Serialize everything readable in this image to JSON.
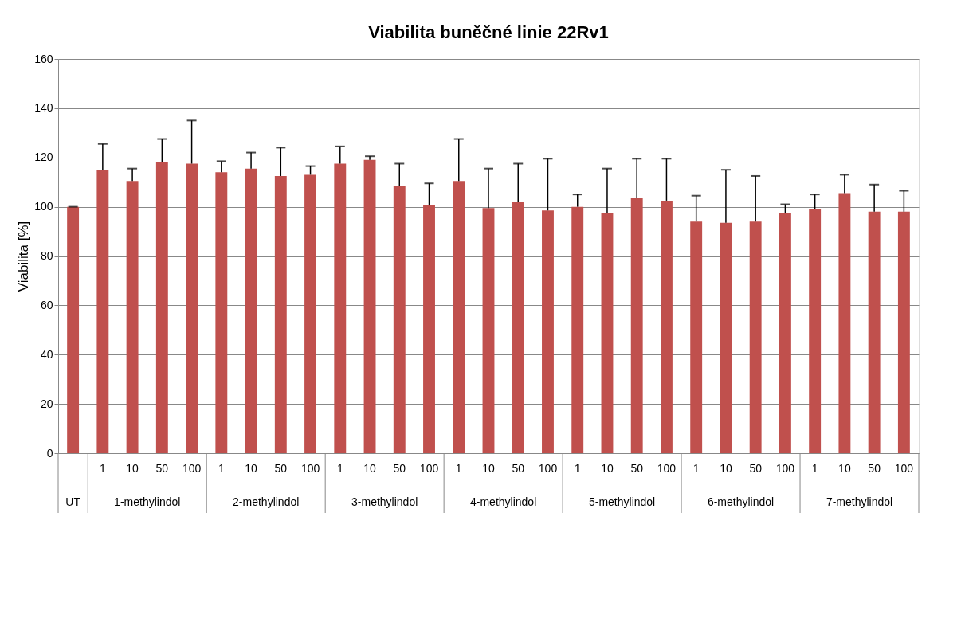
{
  "chart_data": {
    "type": "bar",
    "title": "Viabilita buněčné linie 22Rv1",
    "ylabel": "Viabilita [%]",
    "categories": [
      null,
      "1",
      "10",
      "50",
      "100",
      "1",
      "10",
      "50",
      "100",
      "1",
      "10",
      "50",
      "100",
      "1",
      "10",
      "50",
      "100",
      "1",
      "10",
      "50",
      "100",
      "1",
      "10",
      "50",
      "100",
      "1",
      "10",
      "50",
      "100"
    ],
    "values": [
      100,
      115,
      110.5,
      118,
      117.5,
      114,
      115.5,
      112.5,
      113,
      117.5,
      119,
      108.5,
      100.5,
      110.5,
      99.5,
      102,
      98.5,
      100,
      97.5,
      103.5,
      102.5,
      94,
      93.5,
      94,
      97.5,
      99,
      105.5,
      98,
      98
    ],
    "errors": [
      [
        100,
        100
      ],
      [
        115,
        125.5
      ],
      [
        110.5,
        115.5
      ],
      [
        118,
        127.5
      ],
      [
        117.5,
        135
      ],
      [
        114,
        118.5
      ],
      [
        115.5,
        122
      ],
      [
        112.5,
        124
      ],
      [
        113,
        116.5
      ],
      [
        117.5,
        124.5
      ],
      [
        119,
        120.5
      ],
      [
        108.5,
        117.5
      ],
      [
        100.5,
        109.5
      ],
      [
        110.5,
        127.5
      ],
      [
        99.5,
        115.5
      ],
      [
        102,
        117.5
      ],
      [
        98.5,
        119.5
      ],
      [
        100,
        105
      ],
      [
        97.5,
        115.5
      ],
      [
        103.5,
        119.5
      ],
      [
        102.5,
        119.5
      ],
      [
        94,
        104.5
      ],
      [
        93.5,
        115
      ],
      [
        94,
        112.5
      ],
      [
        97.5,
        101
      ],
      [
        99,
        105
      ],
      [
        105.5,
        113
      ],
      [
        98,
        109
      ],
      [
        98,
        106.5
      ]
    ],
    "color": "#c0504d",
    "ylim": [
      0,
      160
    ],
    "yticks": [
      0,
      20,
      40,
      60,
      80,
      100,
      120,
      140,
      160
    ],
    "grid": "y",
    "annotations": [
      "UT",
      "1-methylindol",
      "2-methylindol",
      "3-methylindol",
      "4-methylindol",
      "5-methylindol",
      "6-methylindol",
      "7-methylindol"
    ]
  }
}
